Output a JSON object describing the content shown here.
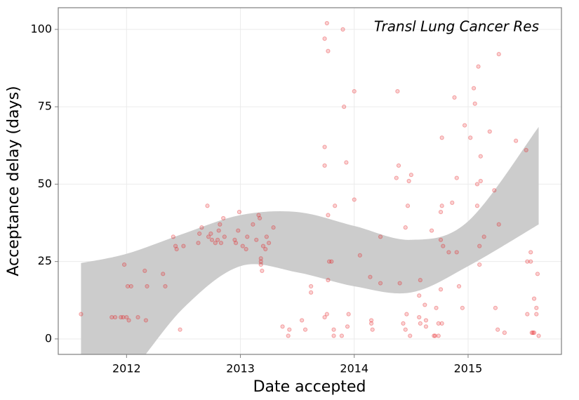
{
  "chart_data": {
    "type": "scatter",
    "title": "Transl Lung Cancer Res",
    "x_label": "Date accepted",
    "y_label": "Acceptance delay (days)",
    "xlim": [
      2011.4,
      2015.82
    ],
    "ylim": [
      -5,
      107
    ],
    "xticks": [
      2012,
      2013,
      2014,
      2015
    ],
    "yticks": [
      0,
      25,
      50,
      75,
      100
    ],
    "grid": true,
    "color": "#e41a1c",
    "x": [
      2011.6,
      2011.87,
      2011.9,
      2011.95,
      2011.97,
      2012.0,
      2012.02,
      2011.98,
      2012.01,
      2012.04,
      2012.1,
      2012.17,
      2012.16,
      2012.18,
      2012.32,
      2012.34,
      2012.41,
      2012.43,
      2012.44,
      2012.47,
      2012.5,
      2012.63,
      2012.64,
      2012.66,
      2012.71,
      2012.72,
      2012.74,
      2012.75,
      2012.78,
      2012.8,
      2012.81,
      2012.82,
      2012.83,
      2012.85,
      2012.86,
      2012.95,
      2012.96,
      2012.98,
      2012.99,
      2013.02,
      2013.05,
      2013.06,
      2013.11,
      2013.14,
      2013.16,
      2013.17,
      2013.18,
      2013.18,
      2013.18,
      2013.19,
      2013.2,
      2013.22,
      2013.23,
      2013.25,
      2013.29,
      2013.37,
      2013.42,
      2013.43,
      2013.54,
      2013.57,
      2013.62,
      2013.62,
      2013.74,
      2013.76,
      2013.77,
      2013.74,
      2013.74,
      2013.77,
      2013.78,
      2013.8,
      2013.77,
      2013.74,
      2013.76,
      2013.82,
      2013.82,
      2013.83,
      2013.9,
      2013.91,
      2013.93,
      2013.89,
      2013.95,
      2013.94,
      2014.0,
      2014.0,
      2014.05,
      2014.14,
      2014.15,
      2014.15,
      2014.16,
      2014.23,
      2014.23,
      2014.37,
      2014.38,
      2014.39,
      2014.4,
      2014.43,
      2014.45,
      2014.45,
      2014.46,
      2014.47,
      2014.48,
      2014.5,
      2014.49,
      2014.57,
      2014.57,
      2014.58,
      2014.58,
      2014.62,
      2014.63,
      2014.63,
      2014.68,
      2014.72,
      2014.74,
      2014.7,
      2014.71,
      2014.74,
      2014.76,
      2014.77,
      2014.77,
      2014.77,
      2014.78,
      2014.76,
      2014.76,
      2014.83,
      2014.86,
      2014.88,
      2014.9,
      2014.9,
      2014.92,
      2014.95,
      2014.97,
      2015.02,
      2015.05,
      2015.06,
      2015.08,
      2015.08,
      2015.09,
      2015.1,
      2015.1,
      2015.11,
      2015.11,
      2015.14,
      2015.19,
      2015.23,
      2015.24,
      2015.26,
      2015.27,
      2015.27,
      2015.32,
      2015.42,
      2015.51,
      2015.52,
      2015.52,
      2015.55,
      2015.55,
      2015.56,
      2015.57,
      2015.58,
      2015.58,
      2015.6,
      2015.61,
      2015.6,
      2015.62
    ],
    "y": [
      8,
      7,
      7,
      7,
      7,
      7,
      6,
      24,
      17,
      17,
      7,
      6,
      22,
      17,
      21,
      17,
      33,
      30,
      29,
      3,
      30,
      31,
      34,
      36,
      43,
      33,
      34,
      32,
      31,
      32,
      35,
      37,
      31,
      39,
      33,
      32,
      31,
      35,
      41,
      30,
      29,
      33,
      37,
      32,
      40,
      39,
      26,
      25,
      24,
      22,
      30,
      29,
      33,
      31,
      36,
      4,
      1,
      3,
      6,
      3,
      17,
      15,
      97,
      102,
      93,
      62,
      56,
      40,
      25,
      25,
      19,
      7,
      8,
      3,
      1,
      43,
      100,
      75,
      57,
      1,
      8,
      4,
      45,
      80,
      27,
      20,
      5,
      6,
      3,
      33,
      18,
      52,
      80,
      56,
      18,
      5,
      3,
      36,
      8,
      43,
      51,
      53,
      1,
      14,
      7,
      5,
      19,
      11,
      4,
      6,
      35,
      10,
      5,
      1,
      1,
      1,
      32,
      65,
      43,
      5,
      30,
      41,
      16,
      28,
      44,
      78,
      52,
      28,
      17,
      10,
      69,
      65,
      81,
      76,
      50,
      43,
      88,
      30,
      24,
      51,
      59,
      33,
      67,
      48,
      10,
      3,
      37,
      92,
      2,
      64,
      61,
      8,
      25,
      25,
      28,
      2,
      2,
      2,
      13,
      8,
      21,
      10,
      1
    ],
    "band": {
      "color": "#cccccc",
      "x": [
        2011.6,
        2012.0,
        2012.5,
        2013.0,
        2013.5,
        2014.0,
        2014.5,
        2015.0,
        2015.62
      ],
      "upper": [
        24.5,
        27.5,
        34,
        40,
        41,
        36.5,
        32,
        38,
        68.5
      ],
      "lower": [
        -20,
        -12,
        10,
        23.5,
        21.5,
        17,
        15,
        23.5,
        37
      ]
    }
  }
}
